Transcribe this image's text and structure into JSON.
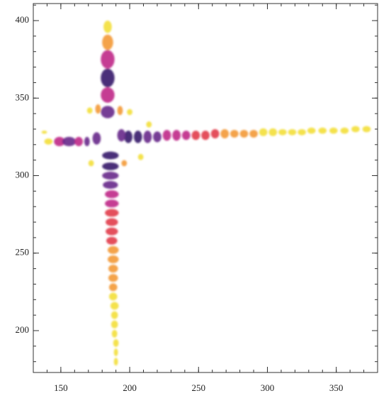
{
  "chart_data": {
    "type": "blobmap",
    "xlim": [
      130,
      380
    ],
    "ylim": [
      173,
      411
    ],
    "xticks": [
      150,
      200,
      250,
      300,
      350
    ],
    "yticks": [
      200,
      250,
      300,
      350,
      400
    ],
    "minor_tick_step": 10,
    "palette": {
      "d": "#3a1c6e",
      "p": "#6a2b8c",
      "m": "#c02a8a",
      "r": "#e2404f",
      "o": "#f39b3b",
      "y": "#f3df3c"
    },
    "blobs": {
      "x": [
        184,
        184,
        184,
        184,
        184,
        184,
        141,
        149,
        156,
        163,
        169,
        199,
        206,
        213,
        220,
        227,
        234,
        241,
        248,
        255,
        262,
        269,
        276,
        283,
        290,
        297,
        304,
        311,
        318,
        325,
        332,
        340,
        348,
        356,
        364,
        372,
        186,
        186,
        186,
        186,
        187,
        187,
        187,
        187,
        187,
        187,
        188,
        188,
        188,
        188,
        188,
        188,
        189,
        189,
        189,
        189,
        190,
        190,
        190,
        171,
        177,
        193,
        200,
        214,
        172,
        196,
        208,
        138,
        176,
        194
      ],
      "y": [
        341,
        352,
        363,
        375,
        386,
        396,
        322,
        322,
        322,
        322,
        322,
        325,
        325,
        325,
        325,
        326,
        326,
        326,
        326,
        326,
        327,
        327,
        327,
        327,
        327,
        328,
        328,
        328,
        328,
        328,
        329,
        329,
        329,
        329,
        330,
        330,
        313,
        306,
        300,
        294,
        288,
        282,
        276,
        270,
        264,
        258,
        252,
        246,
        240,
        234,
        228,
        222,
        216,
        210,
        204,
        198,
        192,
        186,
        180,
        342,
        343,
        342,
        341,
        333,
        308,
        308,
        312,
        328,
        324,
        326
      ],
      "w": [
        5,
        5,
        5,
        5,
        4,
        3,
        3,
        4,
        5,
        3,
        2,
        3,
        3,
        3,
        3,
        3,
        3,
        3,
        3,
        3,
        3,
        3,
        3,
        3,
        3,
        3,
        3,
        3,
        3,
        3,
        3,
        3,
        3,
        3,
        3,
        3,
        6,
        6,
        6,
        5.5,
        5,
        5,
        5,
        4.5,
        4.5,
        4,
        4,
        4,
        3.5,
        3.5,
        3,
        3,
        3,
        2.5,
        2.5,
        2,
        2,
        1.5,
        1.5,
        2,
        2,
        2,
        2,
        2,
        2,
        2,
        2,
        2,
        3,
        3
      ],
      "h": [
        4,
        5,
        6,
        6,
        5,
        4,
        2,
        3,
        3,
        3,
        3,
        4,
        4,
        4,
        3.5,
        3.5,
        3.5,
        3,
        3,
        3,
        3,
        3,
        2.5,
        2.5,
        2.5,
        2.5,
        2.5,
        2,
        2,
        2,
        2,
        2,
        2,
        2,
        2,
        2,
        2.5,
        2.5,
        2.5,
        2.5,
        2.5,
        2.5,
        2.5,
        2.5,
        2.5,
        2.5,
        2.5,
        2.5,
        2.5,
        2.5,
        2.5,
        2.5,
        2.5,
        2.5,
        2.5,
        2.5,
        2.5,
        2.5,
        2.5,
        2,
        3,
        3,
        2,
        2,
        2,
        2,
        2,
        1,
        4,
        4
      ],
      "color": [
        "p",
        "m",
        "d",
        "m",
        "o",
        "y",
        "y",
        "m",
        "p",
        "m",
        "p",
        "d",
        "d",
        "p",
        "p",
        "m",
        "m",
        "m",
        "r",
        "r",
        "r",
        "o",
        "o",
        "o",
        "o",
        "y",
        "y",
        "y",
        "y",
        "y",
        "y",
        "y",
        "y",
        "y",
        "y",
        "y",
        "d",
        "d",
        "p",
        "p",
        "m",
        "m",
        "r",
        "r",
        "r",
        "r",
        "o",
        "o",
        "o",
        "o",
        "o",
        "y",
        "y",
        "y",
        "y",
        "y",
        "y",
        "y",
        "y",
        "y",
        "o",
        "o",
        "y",
        "y",
        "y",
        "o",
        "y",
        "y",
        "p",
        "p"
      ]
    }
  }
}
